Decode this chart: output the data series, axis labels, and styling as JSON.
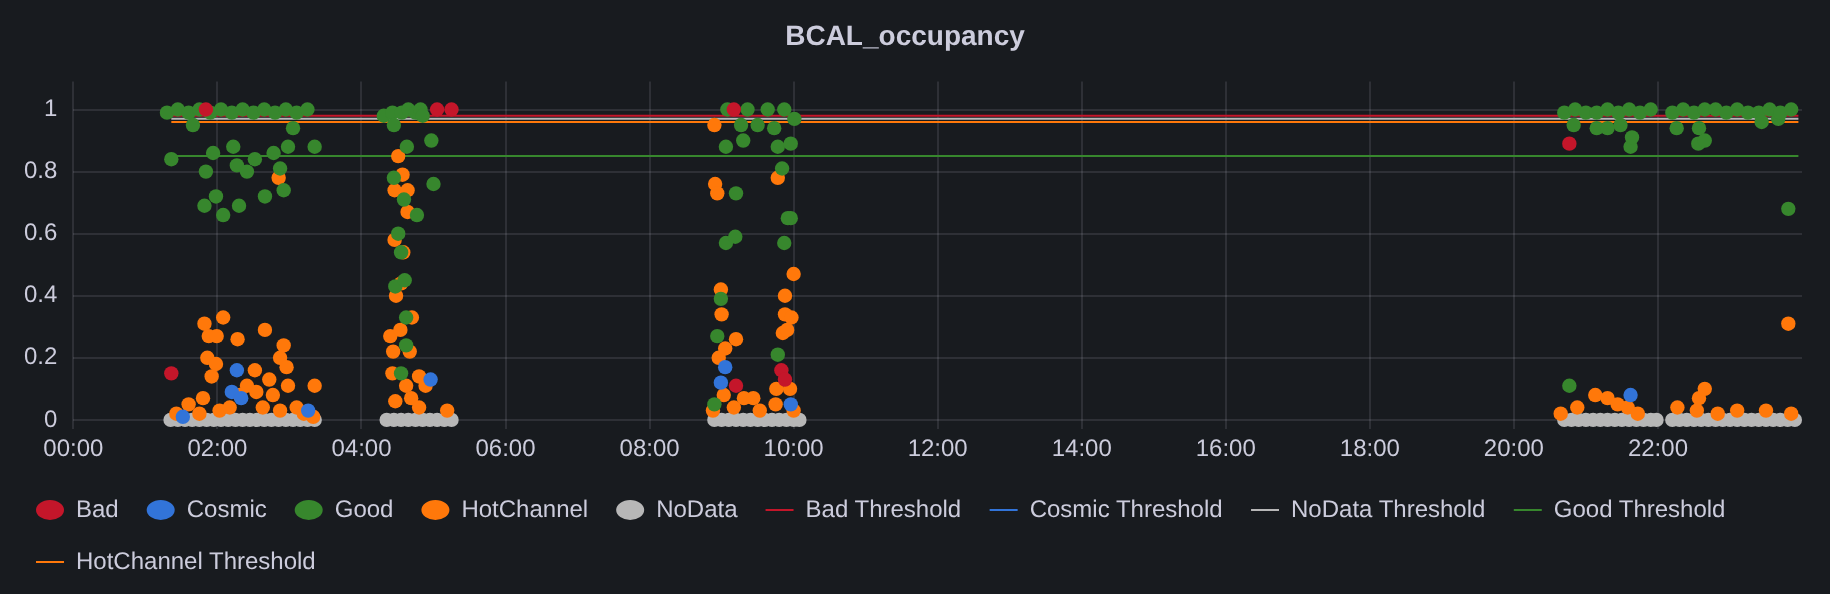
{
  "chart_data": {
    "type": "scatter",
    "title": "BCAL_occupancy",
    "xlim": [
      0,
      24
    ],
    "ylim": [
      -0.03,
      1.09
    ],
    "xticks": [
      {
        "value": 0,
        "label": "00:00"
      },
      {
        "value": 2,
        "label": "02:00"
      },
      {
        "value": 4,
        "label": "04:00"
      },
      {
        "value": 6,
        "label": "06:00"
      },
      {
        "value": 8,
        "label": "08:00"
      },
      {
        "value": 10,
        "label": "10:00"
      },
      {
        "value": 12,
        "label": "12:00"
      },
      {
        "value": 14,
        "label": "14:00"
      },
      {
        "value": 16,
        "label": "16:00"
      },
      {
        "value": 18,
        "label": "18:00"
      },
      {
        "value": 20,
        "label": "20:00"
      },
      {
        "value": 22,
        "label": "22:00"
      }
    ],
    "yticks": [
      0,
      0.2,
      0.4,
      0.6,
      0.8,
      1
    ],
    "grid": true,
    "legend": "bottom",
    "series": [
      {
        "name": "Bad",
        "marker": "circle",
        "color": "#c4162a",
        "x": [
          1.36,
          1.84,
          5.05,
          5.25,
          9.17,
          9.2,
          9.83,
          9.88,
          20.77
        ],
        "values": [
          0.15,
          1.0,
          1.0,
          1.0,
          1.0,
          0.11,
          0.16,
          0.13,
          0.89
        ]
      },
      {
        "name": "Cosmic",
        "marker": "circle",
        "color": "#3274d9",
        "x": [
          1.52,
          2.2,
          2.27,
          2.33,
          3.26,
          4.96,
          8.99,
          9.05,
          9.96,
          21.62
        ],
        "values": [
          0.01,
          0.09,
          0.16,
          0.07,
          0.03,
          0.13,
          0.12,
          0.17,
          0.05,
          0.08
        ]
      },
      {
        "name": "Good",
        "marker": "circle",
        "color": "#37872d",
        "x": [
          1.3,
          1.36,
          1.45,
          1.6,
          1.66,
          1.75,
          1.82,
          1.84,
          1.9,
          1.94,
          1.98,
          2.05,
          2.08,
          2.2,
          2.22,
          2.27,
          2.3,
          2.35,
          2.41,
          2.5,
          2.52,
          2.65,
          2.66,
          2.78,
          2.8,
          2.87,
          2.92,
          2.95,
          2.98,
          3.05,
          3.1,
          3.25,
          3.35,
          4.31,
          4.43,
          4.45,
          4.45,
          4.47,
          4.51,
          4.55,
          4.55,
          4.56,
          4.59,
          4.6,
          4.62,
          4.62,
          4.63,
          4.65,
          4.75,
          4.77,
          4.82,
          4.85,
          4.97,
          5.0,
          8.9,
          8.94,
          8.99,
          9.06,
          9.06,
          9.08,
          9.19,
          9.2,
          9.27,
          9.3,
          9.36,
          9.5,
          9.64,
          9.73,
          9.78,
          9.78,
          9.84,
          9.87,
          9.87,
          9.92,
          9.96,
          9.96,
          10.01,
          20.7,
          20.77,
          20.83,
          20.85,
          21.0,
          21.15,
          21.15,
          21.3,
          21.3,
          21.45,
          21.48,
          21.6,
          21.62,
          21.64,
          21.75,
          21.9,
          22.2,
          22.26,
          22.35,
          22.5,
          22.56,
          22.57,
          22.65,
          22.65,
          22.8,
          22.95,
          23.1,
          23.25,
          23.4,
          23.44,
          23.55,
          23.67,
          23.7,
          23.81,
          23.85
        ],
        "values": [
          0.99,
          0.84,
          1.0,
          0.99,
          0.95,
          1.0,
          0.69,
          0.8,
          0.99,
          0.86,
          0.72,
          1.0,
          0.66,
          0.99,
          0.88,
          0.82,
          0.69,
          1.0,
          0.8,
          0.99,
          0.84,
          1.0,
          0.72,
          0.86,
          0.99,
          0.81,
          0.74,
          1.0,
          0.88,
          0.94,
          0.99,
          1.0,
          0.88,
          0.98,
          0.99,
          0.95,
          0.78,
          0.43,
          0.6,
          0.54,
          0.15,
          0.99,
          0.71,
          0.45,
          0.33,
          0.24,
          0.88,
          1.0,
          0.99,
          0.66,
          1.0,
          0.98,
          0.9,
          0.76,
          0.05,
          0.27,
          0.39,
          0.88,
          0.57,
          1.0,
          0.59,
          0.73,
          0.95,
          0.9,
          1.0,
          0.95,
          1.0,
          0.94,
          0.88,
          0.21,
          0.81,
          1.0,
          0.57,
          0.65,
          0.89,
          0.65,
          0.97,
          0.99,
          0.11,
          0.95,
          1.0,
          0.99,
          0.99,
          0.94,
          1.0,
          0.94,
          0.99,
          0.95,
          1.0,
          0.88,
          0.91,
          0.99,
          1.0,
          0.99,
          0.94,
          1.0,
          0.99,
          0.89,
          0.94,
          0.9,
          1.0,
          1.0,
          0.99,
          1.0,
          0.99,
          0.99,
          0.96,
          1.0,
          0.97,
          0.99,
          0.68,
          1.0
        ]
      },
      {
        "name": "HotChannel",
        "marker": "circle",
        "color": "#ff780a",
        "x": [
          1.43,
          1.6,
          1.75,
          1.8,
          1.82,
          1.86,
          1.88,
          1.92,
          1.98,
          1.99,
          2.03,
          2.08,
          2.17,
          2.28,
          2.31,
          2.41,
          2.52,
          2.54,
          2.63,
          2.66,
          2.72,
          2.77,
          2.85,
          2.87,
          2.87,
          2.92,
          2.96,
          2.98,
          3.1,
          3.2,
          3.33,
          3.35,
          4.4,
          4.43,
          4.44,
          4.46,
          4.46,
          4.47,
          4.48,
          4.51,
          4.54,
          4.55,
          4.57,
          4.58,
          4.62,
          4.64,
          4.64,
          4.67,
          4.69,
          4.7,
          4.8,
          4.8,
          4.89,
          5.19,
          8.88,
          8.9,
          8.91,
          8.94,
          8.96,
          8.99,
          9.0,
          9.03,
          9.05,
          9.17,
          9.2,
          9.31,
          9.44,
          9.53,
          9.75,
          9.76,
          9.78,
          9.85,
          9.88,
          9.88,
          9.91,
          9.95,
          9.97,
          10.0,
          10.0,
          20.65,
          20.88,
          21.13,
          21.3,
          21.44,
          21.58,
          21.72,
          22.27,
          22.54,
          22.57,
          22.65,
          22.83,
          23.1,
          23.5,
          23.81,
          23.85
        ],
        "values": [
          0.02,
          0.05,
          0.02,
          0.07,
          0.31,
          0.2,
          0.27,
          0.14,
          0.18,
          0.27,
          0.03,
          0.33,
          0.04,
          0.26,
          0.08,
          0.11,
          0.16,
          0.09,
          0.04,
          0.29,
          0.13,
          0.08,
          0.78,
          0.2,
          0.03,
          0.24,
          0.17,
          0.11,
          0.04,
          0.02,
          0.01,
          0.11,
          0.27,
          0.15,
          0.22,
          0.74,
          0.58,
          0.06,
          0.4,
          0.85,
          0.29,
          0.44,
          0.79,
          0.54,
          0.11,
          0.74,
          0.67,
          0.22,
          0.07,
          0.33,
          0.14,
          0.04,
          0.11,
          0.03,
          0.03,
          0.95,
          0.76,
          0.73,
          0.2,
          0.42,
          0.34,
          0.08,
          0.23,
          0.04,
          0.26,
          0.07,
          0.07,
          0.03,
          0.05,
          0.1,
          0.78,
          0.28,
          0.4,
          0.34,
          0.29,
          0.1,
          0.33,
          0.47,
          0.03,
          0.02,
          0.04,
          0.08,
          0.07,
          0.05,
          0.04,
          0.02,
          0.04,
          0.03,
          0.07,
          0.1,
          0.02,
          0.03,
          0.03,
          0.31,
          0.02
        ]
      },
      {
        "name": "NoData",
        "marker": "circle",
        "color": "#b7b7b7",
        "x": [
          1.35,
          1.45,
          1.55,
          1.65,
          1.75,
          1.85,
          1.95,
          2.05,
          2.15,
          2.25,
          2.35,
          2.45,
          2.55,
          2.65,
          2.75,
          2.85,
          2.95,
          3.05,
          3.15,
          3.25,
          3.35,
          4.35,
          4.45,
          4.55,
          4.65,
          4.75,
          4.85,
          4.95,
          5.05,
          5.15,
          5.25,
          8.9,
          9.0,
          9.1,
          9.2,
          9.3,
          9.4,
          9.5,
          9.6,
          9.7,
          9.8,
          9.9,
          10.0,
          10.08,
          20.7,
          20.8,
          20.9,
          21.0,
          21.1,
          21.2,
          21.3,
          21.4,
          21.5,
          21.6,
          21.7,
          21.8,
          21.9,
          21.98,
          22.2,
          22.3,
          22.4,
          22.5,
          22.6,
          22.7,
          22.8,
          22.9,
          23.0,
          23.1,
          23.2,
          23.3,
          23.4,
          23.5,
          23.6,
          23.7,
          23.8,
          23.9
        ],
        "values": [
          0,
          0,
          0,
          0,
          0,
          0,
          0,
          0,
          0,
          0,
          0,
          0,
          0,
          0,
          0,
          0,
          0,
          0,
          0,
          0,
          0,
          0,
          0,
          0,
          0,
          0,
          0,
          0,
          0,
          0,
          0,
          0,
          0,
          0,
          0,
          0,
          0,
          0,
          0,
          0,
          0,
          0,
          0,
          0,
          0,
          0,
          0,
          0,
          0,
          0,
          0,
          0,
          0,
          0,
          0,
          0,
          0,
          0,
          0,
          0,
          0,
          0,
          0,
          0,
          0,
          0,
          0,
          0,
          0,
          0,
          0,
          0,
          0,
          0,
          0,
          0
        ]
      },
      {
        "name": "Bad Threshold",
        "type": "line",
        "color": "#c4162a",
        "x": [
          1.36,
          23.95
        ],
        "values": [
          0.98,
          0.98
        ]
      },
      {
        "name": "Cosmic Threshold",
        "type": "line",
        "color": "#3274d9"
      },
      {
        "name": "NoData Threshold",
        "type": "line",
        "color": "#b7b7b7",
        "x": [
          1.36,
          23.95
        ],
        "values": [
          0.97,
          0.97
        ]
      },
      {
        "name": "Good Threshold",
        "type": "line",
        "color": "#37872d",
        "x": [
          1.36,
          23.95
        ],
        "values": [
          0.85,
          0.85
        ]
      },
      {
        "name": "HotChannel Threshold",
        "type": "line",
        "color": "#ff780a",
        "x": [
          1.36,
          23.95
        ],
        "values": [
          0.96,
          0.96
        ]
      }
    ]
  }
}
